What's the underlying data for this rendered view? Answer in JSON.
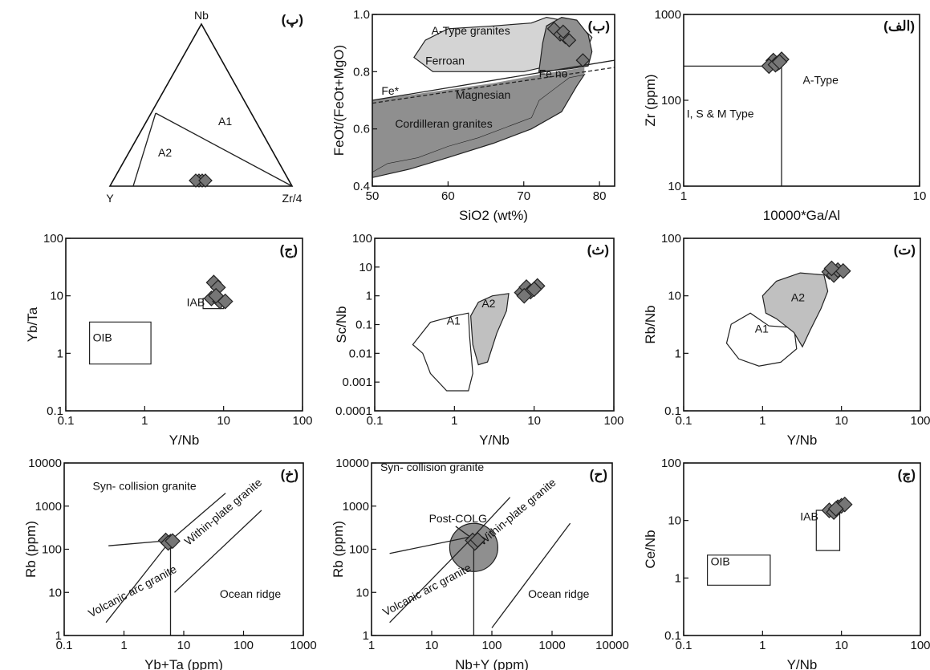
{
  "chart_data": [
    {
      "id": "ternary",
      "type": "scatter",
      "panel_tag": "(پ)",
      "vertex_labels": [
        "Nb",
        "Y",
        "Zr/4"
      ],
      "field_labels": [
        "A1",
        "A2"
      ],
      "points": [
        [
          0.34,
          0.59,
          0.07
        ],
        [
          0.33,
          0.6,
          0.07
        ],
        [
          0.35,
          0.58,
          0.07
        ],
        [
          0.32,
          0.61,
          0.07
        ]
      ]
    },
    {
      "id": "feo",
      "type": "scatter",
      "panel_tag": "(ب)",
      "xlabel": "SiO2 (wt%)",
      "ylabel": "FeOt/(FeOt+MgO)",
      "xlim": [
        50,
        82
      ],
      "ylim": [
        0.4,
        1.0
      ],
      "xticks": [
        "50",
        "60",
        "70",
        "80"
      ],
      "yticks": [
        "0.4",
        "0.6",
        "0.8",
        "1.0"
      ],
      "field_labels": [
        "A-Type granites",
        "Ferroan",
        "Fe*",
        "Fe no",
        "Magnesian",
        "Cordilleran granites"
      ],
      "points": [
        [
          74.0,
          0.95
        ],
        [
          74.8,
          0.93
        ],
        [
          75.5,
          0.92
        ],
        [
          76.0,
          0.91
        ],
        [
          75.2,
          0.94
        ],
        [
          77.8,
          0.84
        ]
      ]
    },
    {
      "id": "zr",
      "type": "scatter",
      "panel_tag": "(الف)",
      "xlabel": "10000*Ga/Al",
      "ylabel": "Zr (ppm)",
      "xlim": [
        1,
        10
      ],
      "ylim": [
        10,
        1000
      ],
      "xticks": [
        "1",
        "10"
      ],
      "yticks": [
        "10",
        "100",
        "1000"
      ],
      "field_labels": [
        "A-Type",
        "I, S & M Type"
      ],
      "points": [
        [
          2.4,
          290
        ],
        [
          2.5,
          270
        ],
        [
          2.3,
          250
        ],
        [
          2.6,
          300
        ],
        [
          2.45,
          260
        ],
        [
          2.55,
          280
        ]
      ]
    },
    {
      "id": "ybta",
      "type": "scatter",
      "panel_tag": "(ج)",
      "xlabel": "Y/Nb",
      "ylabel": "Yb/Ta",
      "xlim": [
        0.1,
        100
      ],
      "ylim": [
        0.1,
        100
      ],
      "xticks": [
        "0.1",
        "1",
        "10",
        "100"
      ],
      "yticks": [
        "0.1",
        "1",
        "10",
        "100"
      ],
      "field_labels": [
        "OIB",
        "IAB"
      ],
      "points": [
        [
          7.5,
          17
        ],
        [
          8.5,
          14
        ],
        [
          7.0,
          9
        ],
        [
          9.0,
          8
        ],
        [
          8.0,
          10
        ],
        [
          10.5,
          8
        ]
      ]
    },
    {
      "id": "scnb",
      "type": "scatter",
      "panel_tag": "(ث)",
      "xlabel": "Y/Nb",
      "ylabel": "Sc/Nb",
      "xlim": [
        0.1,
        100
      ],
      "ylim": [
        0.0001,
        100
      ],
      "xticks": [
        "0.1",
        "1",
        "10",
        "100"
      ],
      "yticks": [
        "0.0001",
        "0.001",
        "0.01",
        "0.1",
        "1",
        "10",
        "100"
      ],
      "field_labels": [
        "A1",
        "A2"
      ],
      "points": [
        [
          7,
          1.3
        ],
        [
          8,
          2
        ],
        [
          9,
          1.4
        ],
        [
          11,
          2.2
        ],
        [
          7.5,
          1.0
        ],
        [
          10,
          1.7
        ]
      ]
    },
    {
      "id": "rbnb",
      "type": "scatter",
      "panel_tag": "(ت)",
      "xlabel": "Y/Nb",
      "ylabel": "Rb/Nb",
      "xlim": [
        0.1,
        100
      ],
      "ylim": [
        0.1,
        100
      ],
      "xticks": [
        "0.1",
        "1",
        "10",
        "100"
      ],
      "yticks": [
        "0.1",
        "1",
        "10",
        "100"
      ],
      "field_labels": [
        "A1",
        "A2"
      ],
      "points": [
        [
          7,
          26
        ],
        [
          8,
          23
        ],
        [
          9,
          28
        ],
        [
          10.5,
          27
        ],
        [
          7.5,
          30
        ]
      ]
    },
    {
      "id": "rbybta",
      "type": "scatter",
      "panel_tag": "(خ)",
      "xlabel": "Yb+Ta (ppm)",
      "ylabel": "Rb (ppm)",
      "xlim": [
        0.1,
        1000
      ],
      "ylim": [
        1,
        10000
      ],
      "xticks": [
        "0.1",
        "1",
        "10",
        "100",
        "1000"
      ],
      "yticks": [
        "1",
        "10",
        "100",
        "1000",
        "10000"
      ],
      "field_labels": [
        "Syn- collision granite",
        "Within-plate granite",
        "Volcanic arc granite",
        "Ocean ridge"
      ],
      "points": [
        [
          5,
          160
        ],
        [
          6,
          150
        ],
        [
          5.5,
          140
        ],
        [
          6.5,
          155
        ]
      ]
    },
    {
      "id": "rbnby",
      "type": "scatter",
      "panel_tag": "(ح)",
      "xlabel": "Nb+Y (ppm)",
      "ylabel": "Rb (ppm)",
      "xlim": [
        1,
        10000
      ],
      "ylim": [
        1,
        10000
      ],
      "xticks": [
        "1",
        "10",
        "100",
        "1000",
        "10000"
      ],
      "yticks": [
        "1",
        "10",
        "100",
        "1000",
        "10000"
      ],
      "field_labels": [
        "Syn- collision granite",
        "Post-COLG",
        "Within-plate granite",
        "Volcanic arc granite",
        "Ocean ridge"
      ],
      "points": [
        [
          48,
          160
        ],
        [
          55,
          150
        ],
        [
          52,
          140
        ],
        [
          58,
          165
        ]
      ]
    },
    {
      "id": "cenb",
      "type": "scatter",
      "panel_tag": "(چ)",
      "xlabel": "Y/Nb",
      "ylabel": "Ce/Nb",
      "xlim": [
        0.1,
        100
      ],
      "ylim": [
        0.1,
        100
      ],
      "xticks": [
        "0.1",
        "1",
        "10",
        "100"
      ],
      "yticks": [
        "0.1",
        "1",
        "10",
        "100"
      ],
      "field_labels": [
        "OIB",
        "IAB"
      ],
      "points": [
        [
          7,
          15
        ],
        [
          8,
          14
        ],
        [
          9,
          17
        ],
        [
          10,
          18
        ],
        [
          11,
          19
        ],
        [
          8.5,
          16
        ]
      ]
    }
  ]
}
